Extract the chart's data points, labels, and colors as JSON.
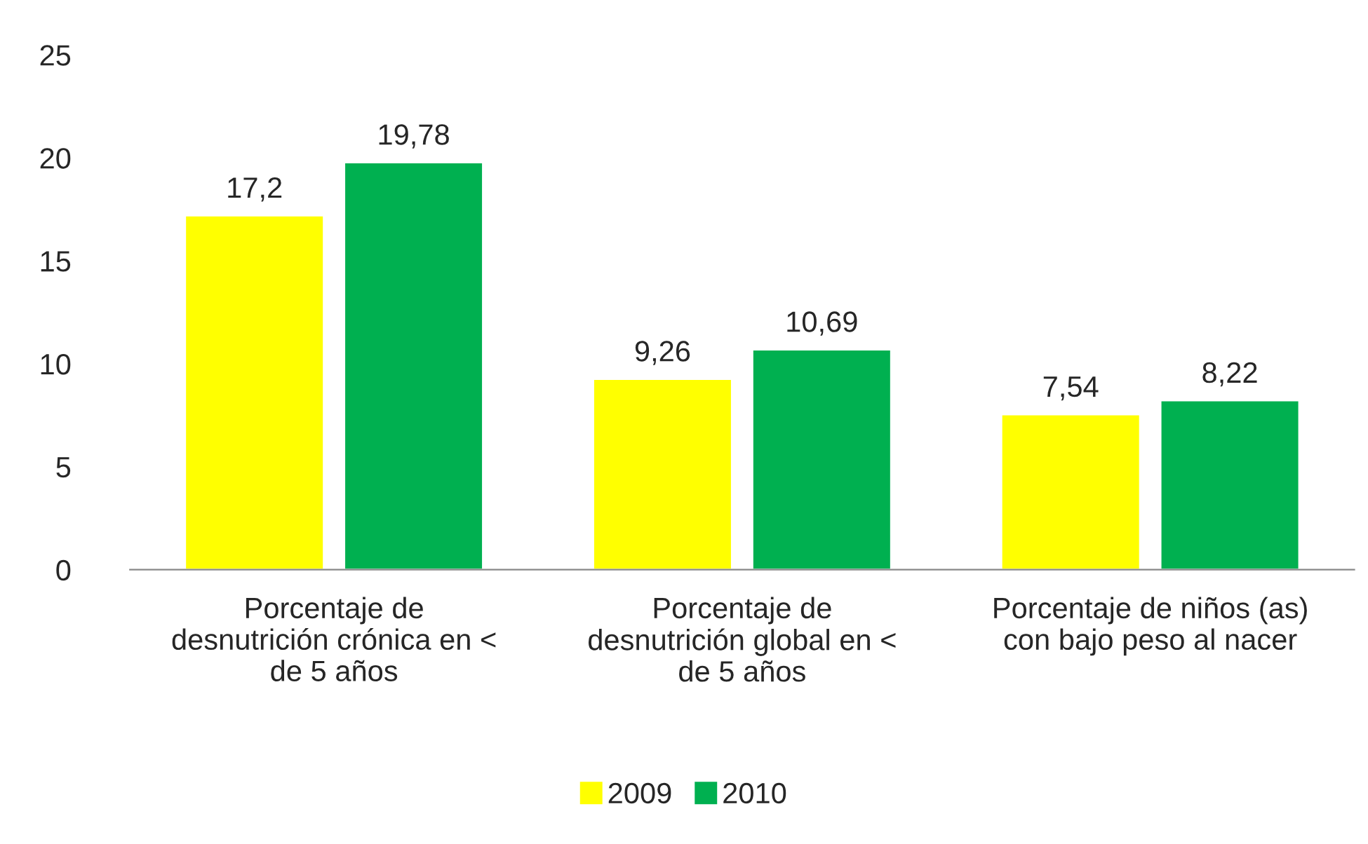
{
  "chart_data": {
    "type": "bar",
    "categories": [
      "Porcentaje de desnutrición crónica en < de 5 años",
      "Porcentaje de desnutrición global en < de 5 años",
      "Porcentaje de niños (as) con bajo peso al nacer"
    ],
    "series": [
      {
        "name": "2009",
        "color": "#ffff00",
        "values": [
          17.2,
          9.26,
          7.54
        ],
        "value_labels": [
          "17,2",
          "9,26",
          "7,54"
        ]
      },
      {
        "name": "2010",
        "color": "#00b050",
        "values": [
          19.78,
          10.69,
          8.22
        ],
        "value_labels": [
          "19,78",
          "10,69",
          "8,22"
        ]
      }
    ],
    "ylim": [
      0,
      25
    ],
    "yticks": [
      0,
      5,
      10,
      15,
      20,
      25
    ],
    "grid": false,
    "legend": "bottom"
  }
}
